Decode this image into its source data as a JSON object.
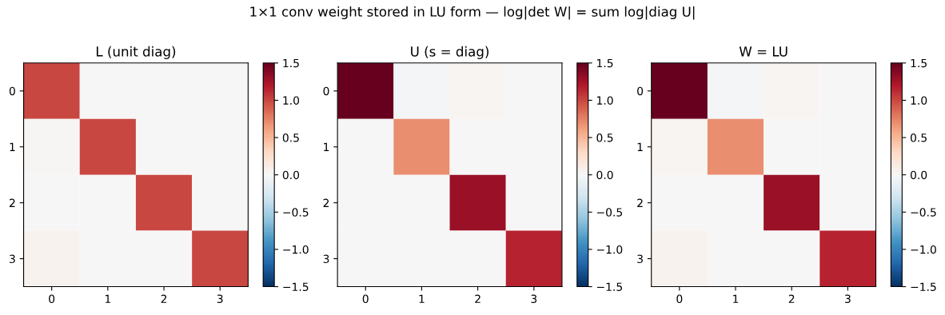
{
  "chart_data": [
    {
      "type": "heatmap",
      "title": "L (unit diag)",
      "annotations": [
        "1×1 conv weight stored in LU form — log|det W| = sum log|diag U|"
      ],
      "categories": [
        "0",
        "1",
        "2",
        "3"
      ],
      "y_categories": [
        "0",
        "1",
        "2",
        "3"
      ],
      "cells": [
        [
          1.0,
          0.0,
          0.0,
          0.0
        ],
        [
          0.02,
          1.0,
          0.0,
          0.0
        ],
        [
          0.0,
          0.0,
          1.0,
          0.0
        ],
        [
          0.05,
          0.0,
          0.0,
          1.0
        ]
      ],
      "clim": [
        -1.5,
        1.5
      ],
      "cticks": [
        {
          "value": -1.5,
          "label": "−1.5"
        },
        {
          "value": -1.0,
          "label": "−1.0"
        },
        {
          "value": -0.5,
          "label": "−0.5"
        },
        {
          "value": 0.0,
          "label": "0.0"
        },
        {
          "value": 0.5,
          "label": "0.5"
        },
        {
          "value": 1.0,
          "label": "1.0"
        },
        {
          "value": 1.5,
          "label": "1.5"
        }
      ]
    },
    {
      "type": "heatmap",
      "title": "U (s = diag)",
      "categories": [
        "0",
        "1",
        "2",
        "3"
      ],
      "y_categories": [
        "0",
        "1",
        "2",
        "3"
      ],
      "cells": [
        [
          1.5,
          -0.03,
          0.03,
          0.0
        ],
        [
          0.0,
          0.7,
          0.0,
          0.0
        ],
        [
          0.0,
          0.0,
          1.3,
          0.0
        ],
        [
          0.0,
          0.0,
          0.0,
          1.15
        ]
      ],
      "clim": [
        -1.5,
        1.5
      ],
      "cticks": [
        {
          "value": -1.5,
          "label": "−1.5"
        },
        {
          "value": -1.0,
          "label": "−1.0"
        },
        {
          "value": -0.5,
          "label": "−0.5"
        },
        {
          "value": 0.0,
          "label": "0.0"
        },
        {
          "value": 0.5,
          "label": "0.5"
        },
        {
          "value": 1.0,
          "label": "1.0"
        },
        {
          "value": 1.5,
          "label": "1.5"
        }
      ]
    },
    {
      "type": "heatmap",
      "title": "W = LU",
      "categories": [
        "0",
        "1",
        "2",
        "3"
      ],
      "y_categories": [
        "0",
        "1",
        "2",
        "3"
      ],
      "cells": [
        [
          1.5,
          -0.03,
          0.03,
          0.0
        ],
        [
          0.03,
          0.7,
          0.0,
          0.0
        ],
        [
          0.0,
          0.0,
          1.3,
          0.0
        ],
        [
          0.05,
          0.0,
          0.0,
          1.15
        ]
      ],
      "clim": [
        -1.5,
        1.5
      ],
      "cticks": [
        {
          "value": -1.5,
          "label": "−1.5"
        },
        {
          "value": -1.0,
          "label": "−1.0"
        },
        {
          "value": -0.5,
          "label": "−0.5"
        },
        {
          "value": 0.0,
          "label": "0.0"
        },
        {
          "value": 0.5,
          "label": "0.5"
        },
        {
          "value": 1.0,
          "label": "1.0"
        },
        {
          "value": 1.5,
          "label": "1.5"
        }
      ]
    }
  ]
}
